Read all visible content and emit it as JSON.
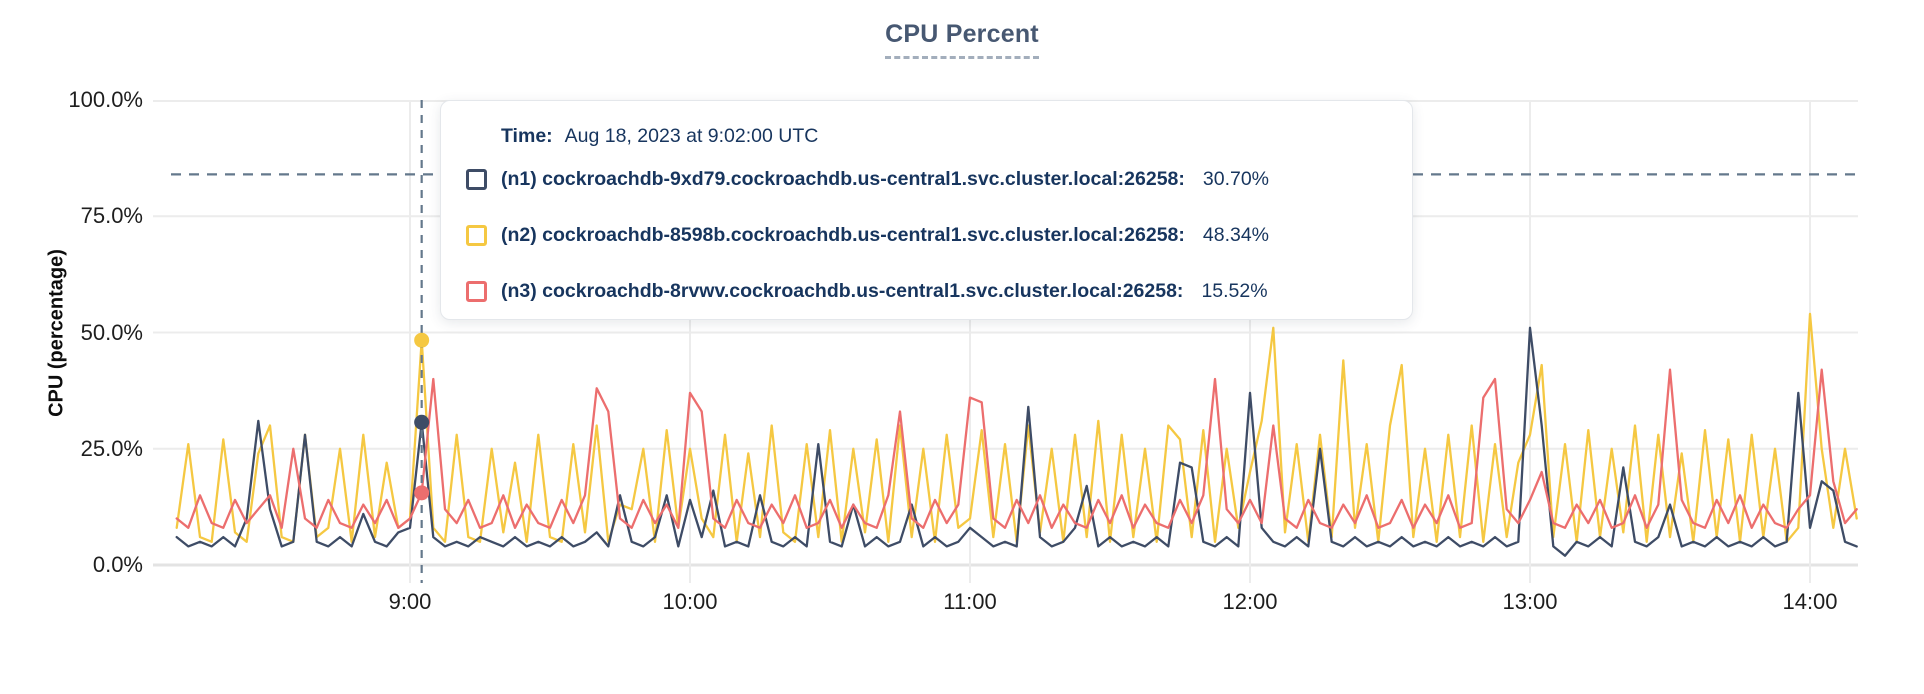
{
  "header": {
    "title": "CPU Percent"
  },
  "colors": {
    "title": "#475872",
    "grid": "#ececec",
    "axis_line": "#e3e3e3",
    "dashed_guides": "#64788c",
    "tick_text": "#1e1e1e",
    "tooltip_text": "#17355e",
    "series_n1": "#3e4c66",
    "series_n2": "#f5c842",
    "series_n3": "#ec6e6e"
  },
  "chart_data": {
    "type": "line",
    "title": "CPU Percent",
    "xlabel": "",
    "ylabel": "CPU (percentage)",
    "ylim": [
      0,
      100
    ],
    "grid": true,
    "legend_position": "tooltip",
    "y_ticks": [
      "100.0%",
      "75.0%",
      "50.0%",
      "25.0%",
      "0.0%"
    ],
    "y_tick_values": [
      100,
      75,
      50,
      25,
      0
    ],
    "x_ticks": [
      "9:00",
      "10:00",
      "11:00",
      "12:00",
      "13:00",
      "14:00"
    ],
    "x_start": "8:10",
    "x_end": "14:10",
    "x_step_minutes": 2.5,
    "threshold_line_percent": 84,
    "crosshair": {
      "time": "9:02",
      "index": 21
    },
    "tooltip": {
      "time_label": "Time:",
      "time_value": "Aug 18, 2023 at 9:02:00 UTC"
    },
    "series": [
      {
        "id": "n1",
        "label": "(n1) cockroachdb-9xd79.cockroachdb.us-central1.svc.cluster.local:26258:",
        "value_at_crosshair": "30.70%",
        "color": "#3e4c66",
        "values": [
          6,
          4,
          5,
          4,
          6,
          4,
          10,
          31,
          12,
          4,
          5,
          28,
          5,
          4,
          6,
          4,
          11,
          5,
          4,
          7,
          8,
          30.7,
          6,
          4,
          5,
          4,
          6,
          5,
          4,
          6,
          4,
          5,
          4,
          6,
          4,
          5,
          7,
          4,
          15,
          5,
          4,
          6,
          15,
          4,
          14,
          6,
          16,
          4,
          5,
          4,
          15,
          5,
          4,
          6,
          4,
          26,
          5,
          4,
          13,
          4,
          6,
          4,
          5,
          13,
          4,
          6,
          4,
          5,
          8,
          6,
          4,
          5,
          4,
          34,
          6,
          4,
          5,
          8,
          17,
          4,
          6,
          4,
          5,
          4,
          6,
          4,
          22,
          21,
          5,
          4,
          6,
          4,
          37,
          8,
          5,
          4,
          6,
          4,
          25,
          5,
          4,
          6,
          4,
          5,
          4,
          6,
          4,
          5,
          4,
          6,
          4,
          5,
          4,
          6,
          4,
          5,
          51,
          30,
          4,
          2,
          5,
          4,
          6,
          4,
          21,
          5,
          4,
          6,
          13,
          4,
          5,
          4,
          6,
          4,
          5,
          4,
          6,
          4,
          5,
          37,
          8,
          18,
          16,
          5,
          4
        ]
      },
      {
        "id": "n2",
        "label": "(n2) cockroachdb-8598b.cockroachdb.us-central1.svc.cluster.local:26258:",
        "value_at_crosshair": "48.34%",
        "color": "#f5c842",
        "values": [
          8,
          26,
          6,
          5,
          27,
          7,
          5,
          24,
          30,
          6,
          5,
          28,
          6,
          8,
          25,
          5,
          28,
          6,
          22,
          8,
          10,
          48.34,
          8,
          5,
          28,
          6,
          5,
          25,
          7,
          22,
          5,
          28,
          6,
          5,
          26,
          7,
          30,
          5,
          13,
          12,
          25,
          5,
          29,
          8,
          25,
          10,
          6,
          28,
          5,
          24,
          6,
          30,
          7,
          5,
          26,
          6,
          29,
          5,
          25,
          7,
          27,
          5,
          30,
          6,
          25,
          5,
          28,
          8,
          10,
          29,
          6,
          26,
          5,
          30,
          7,
          25,
          5,
          28,
          6,
          31,
          5,
          28,
          6,
          25,
          5,
          30,
          27,
          6,
          29,
          5,
          25,
          8,
          20,
          31,
          51,
          7,
          26,
          5,
          28,
          6,
          44,
          8,
          26,
          5,
          30,
          43,
          6,
          25,
          5,
          28,
          6,
          30,
          5,
          26,
          6,
          22,
          28,
          43,
          6,
          26,
          5,
          29,
          6,
          25,
          7,
          30,
          5,
          28,
          6,
          24,
          5,
          29,
          6,
          27,
          5,
          28,
          6,
          25,
          5,
          8,
          54,
          25,
          8,
          25,
          10
        ]
      },
      {
        "id": "n3",
        "label": "(n3) cockroachdb-8rvwv.cockroachdb.us-central1.svc.cluster.local:26258:",
        "value_at_crosshair": "15.52%",
        "color": "#ec6e6e",
        "values": [
          10,
          8,
          15,
          9,
          8,
          14,
          9,
          12,
          15,
          8,
          25,
          10,
          8,
          14,
          9,
          8,
          13,
          9,
          14,
          8,
          10,
          15.52,
          40,
          12,
          9,
          14,
          8,
          9,
          15,
          8,
          13,
          9,
          8,
          14,
          9,
          15,
          38,
          33,
          10,
          8,
          14,
          9,
          13,
          8,
          37,
          33,
          10,
          8,
          14,
          9,
          8,
          13,
          9,
          15,
          8,
          9,
          14,
          8,
          13,
          9,
          8,
          15,
          33,
          10,
          8,
          14,
          9,
          13,
          36,
          35,
          10,
          8,
          14,
          9,
          15,
          8,
          13,
          9,
          8,
          14,
          9,
          15,
          8,
          13,
          9,
          8,
          14,
          9,
          15,
          40,
          12,
          9,
          14,
          9,
          30,
          10,
          8,
          14,
          9,
          8,
          13,
          9,
          15,
          8,
          9,
          14,
          8,
          13,
          9,
          15,
          8,
          9,
          36,
          40,
          12,
          9,
          14,
          20,
          9,
          8,
          13,
          9,
          14,
          8,
          9,
          15,
          8,
          13,
          42,
          14,
          9,
          8,
          14,
          9,
          15,
          8,
          13,
          9,
          8,
          12,
          15,
          42,
          18,
          9,
          12
        ]
      }
    ]
  }
}
